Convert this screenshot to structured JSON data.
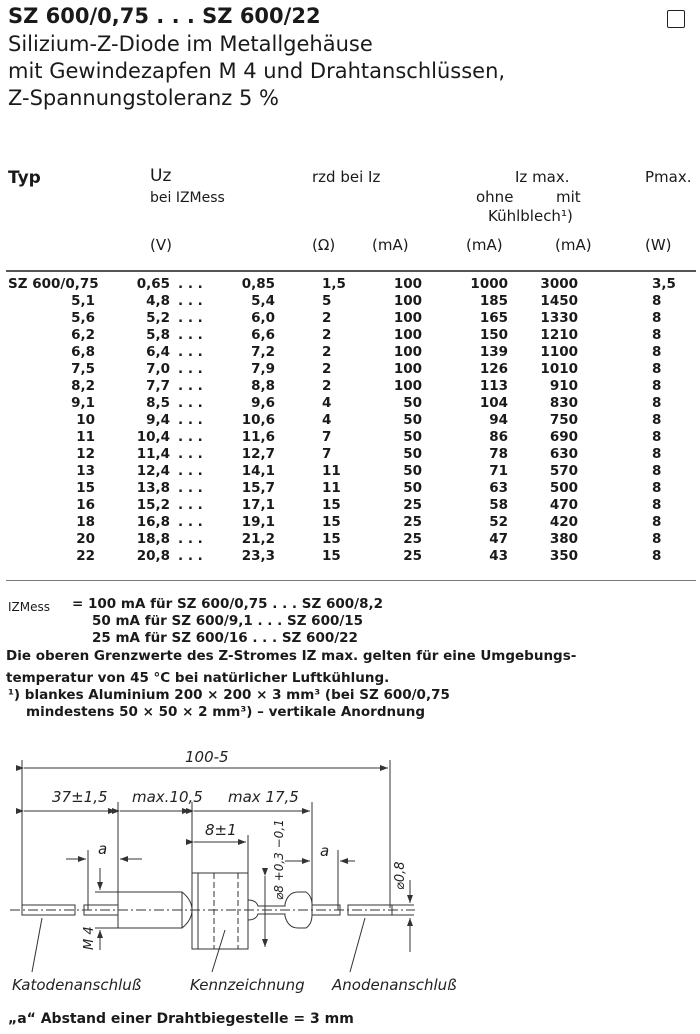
{
  "header": {
    "title": "SZ 600/0,75 . . . SZ 600/22",
    "subtitle_lines": [
      "Silizium-Z-Diode im Metallgehäuse",
      "mit Gewindezapfen M 4 und Drahtanschlüssen,",
      "Z-Spannungstoleranz 5 %"
    ]
  },
  "table": {
    "headers": {
      "typ": "Typ",
      "uz": "Uz",
      "uz_sub": "bei IZMess",
      "rzd": "rzd bei Iz",
      "iz_max": "Iz max.",
      "ohne": "ohne",
      "mit": "mit",
      "kuehlblech": "Kühlblech¹)",
      "pmax": "Pmax."
    },
    "units": {
      "uz": "(V)",
      "rzd": "(Ω)",
      "iz": "(mA)",
      "ohne": "(mA)",
      "mit": "(mA)",
      "p": "(W)"
    },
    "rows": [
      {
        "typ": "SZ 600/0,75",
        "uz_min": "0,65",
        "uz_max": "0,85",
        "rzd": "1,5",
        "iz": "100",
        "ohne": "1000",
        "mit": "3000",
        "p": "3,5"
      },
      {
        "typ": "5,1",
        "uz_min": "4,8",
        "uz_max": "5,4",
        "rzd": "5",
        "iz": "100",
        "ohne": "185",
        "mit": "1450",
        "p": "8"
      },
      {
        "typ": "5,6",
        "uz_min": "5,2",
        "uz_max": "6,0",
        "rzd": "2",
        "iz": "100",
        "ohne": "165",
        "mit": "1330",
        "p": "8"
      },
      {
        "typ": "6,2",
        "uz_min": "5,8",
        "uz_max": "6,6",
        "rzd": "2",
        "iz": "100",
        "ohne": "150",
        "mit": "1210",
        "p": "8"
      },
      {
        "typ": "6,8",
        "uz_min": "6,4",
        "uz_max": "7,2",
        "rzd": "2",
        "iz": "100",
        "ohne": "139",
        "mit": "1100",
        "p": "8"
      },
      {
        "typ": "7,5",
        "uz_min": "7,0",
        "uz_max": "7,9",
        "rzd": "2",
        "iz": "100",
        "ohne": "126",
        "mit": "1010",
        "p": "8"
      },
      {
        "typ": "8,2",
        "uz_min": "7,7",
        "uz_max": "8,8",
        "rzd": "2",
        "iz": "100",
        "ohne": "113",
        "mit": "910",
        "p": "8"
      },
      {
        "typ": "9,1",
        "uz_min": "8,5",
        "uz_max": "9,6",
        "rzd": "4",
        "iz": "50",
        "ohne": "104",
        "mit": "830",
        "p": "8"
      },
      {
        "typ": "10",
        "uz_min": "9,4",
        "uz_max": "10,6",
        "rzd": "4",
        "iz": "50",
        "ohne": "94",
        "mit": "750",
        "p": "8"
      },
      {
        "typ": "11",
        "uz_min": "10,4",
        "uz_max": "11,6",
        "rzd": "7",
        "iz": "50",
        "ohne": "86",
        "mit": "690",
        "p": "8"
      },
      {
        "typ": "12",
        "uz_min": "11,4",
        "uz_max": "12,7",
        "rzd": "7",
        "iz": "50",
        "ohne": "78",
        "mit": "630",
        "p": "8"
      },
      {
        "typ": "13",
        "uz_min": "12,4",
        "uz_max": "14,1",
        "rzd": "11",
        "iz": "50",
        "ohne": "71",
        "mit": "570",
        "p": "8"
      },
      {
        "typ": "15",
        "uz_min": "13,8",
        "uz_max": "15,7",
        "rzd": "11",
        "iz": "50",
        "ohne": "63",
        "mit": "500",
        "p": "8"
      },
      {
        "typ": "16",
        "uz_min": "15,2",
        "uz_max": "17,1",
        "rzd": "15",
        "iz": "25",
        "ohne": "58",
        "mit": "470",
        "p": "8"
      },
      {
        "typ": "18",
        "uz_min": "16,8",
        "uz_max": "19,1",
        "rzd": "15",
        "iz": "25",
        "ohne": "52",
        "mit": "420",
        "p": "8"
      },
      {
        "typ": "20",
        "uz_min": "18,8",
        "uz_max": "21,2",
        "rzd": "15",
        "iz": "25",
        "ohne": "47",
        "mit": "380",
        "p": "8"
      },
      {
        "typ": "22",
        "uz_min": "20,8",
        "uz_max": "23,3",
        "rzd": "15",
        "iz": "25",
        "ohne": "43",
        "mit": "350",
        "p": "8"
      }
    ],
    "range_sep": ". . ."
  },
  "notes": {
    "izmess_label": "IZMess",
    "izmess_lines": [
      "= 100 mA für SZ 600/0,75 . . . SZ 600/8,2",
      "50 mA für SZ 600/9,1  . . . SZ 600/15",
      "25 mA für SZ 600/16   . . . SZ 600/22"
    ],
    "limits_1": "Die oberen Grenzwerte des Z-Stromes IZ max. gelten für eine Umgebungs-",
    "limits_2": "temperatur von 45 °C bei natürlicher Luftkühlung.",
    "footnote_1": "¹) blankes Aluminium 200 × 200 × 3 mm³ (bei SZ 600/0,75",
    "footnote_2": "mindestens 50 × 50 × 2 mm³) – vertikale Anordnung"
  },
  "drawing": {
    "overall": "100-5",
    "dim_37": "37±1,5",
    "dim_max105": "max.10,5",
    "dim_max175": "max 17,5",
    "dim_8": "8±1",
    "dim_a_left": "a",
    "dim_a_right": "a",
    "dim_dia8": "⌀8 +0,3 −0,1",
    "dim_dia08": "⌀0,8",
    "dim_m4": "M 4",
    "label_kathode": "Katodenanschluß",
    "label_kennz": "Kennzeichnung",
    "label_anode": "Anodenanschluß",
    "caption": "„a“ Abstand einer Drahtbiegestelle = 3 mm"
  }
}
